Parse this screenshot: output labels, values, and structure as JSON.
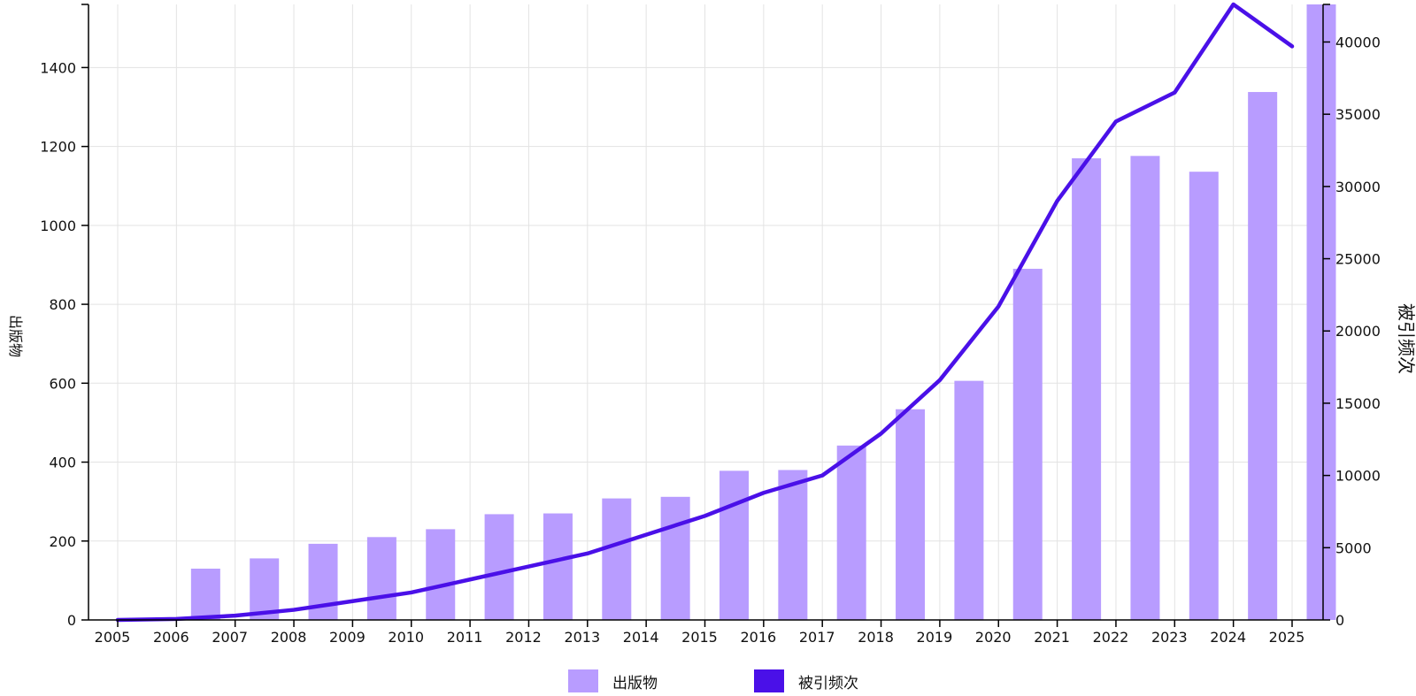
{
  "chart_data": {
    "type": "bar+line",
    "categories": [
      "2005",
      "2006",
      "2007",
      "2008",
      "2009",
      "2010",
      "2011",
      "2012",
      "2013",
      "2014",
      "2015",
      "2016",
      "2017",
      "2018",
      "2019",
      "2020",
      "2021",
      "2022",
      "2023",
      "2024",
      "2025"
    ],
    "series": [
      {
        "name": "出版物",
        "type": "bar",
        "axis": "left",
        "color": "#b89cff",
        "values": [
          0,
          130,
          156,
          193,
          210,
          230,
          268,
          270,
          308,
          312,
          378,
          380,
          442,
          534,
          606,
          890,
          1170,
          1176,
          1136,
          1338,
          1560
        ]
      },
      {
        "name": "被引频次",
        "type": "line",
        "axis": "right",
        "color": "#4a10e8",
        "values": [
          0,
          70,
          300,
          700,
          1300,
          1900,
          2800,
          3700,
          4600,
          5900,
          7200,
          8800,
          10000,
          12900,
          16600,
          21700,
          29000,
          34500,
          36500,
          42600,
          39700
        ]
      }
    ],
    "left_axis": {
      "label": "出版物",
      "ylim": [
        0,
        1560
      ],
      "ticks": [
        0,
        200,
        400,
        600,
        800,
        1000,
        1200,
        1400
      ]
    },
    "right_axis": {
      "label": "被引频次",
      "ylim": [
        0,
        42600
      ],
      "ticks": [
        0,
        5000,
        10000,
        15000,
        20000,
        25000,
        30000,
        35000,
        40000
      ]
    },
    "grid": true,
    "legend_position": "bottom-center",
    "title": ""
  },
  "legend": {
    "publications_label": "出版物",
    "citations_label": "被引频次",
    "publications_color": "#b89cff",
    "citations_color": "#4a10e8"
  }
}
